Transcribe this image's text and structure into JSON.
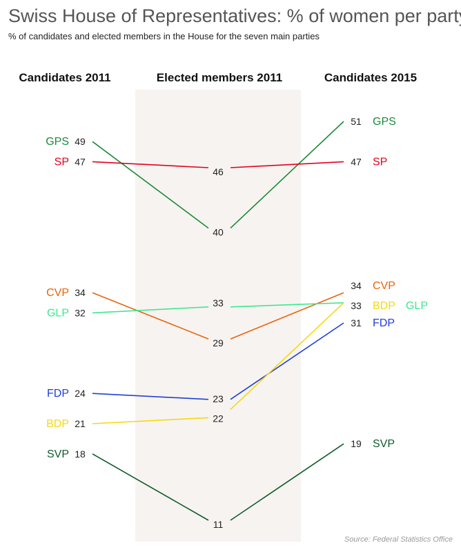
{
  "header": {
    "title": "Swiss House of Representatives: % of women per party",
    "subtitle": "% of candidates and elected members in the House for the seven main parties"
  },
  "source": "Source: Federal Statistics Office",
  "chart_data": {
    "type": "line",
    "subtype": "slope",
    "columns": [
      "Candidates 2011",
      "Elected members 2011",
      "Candidates 2015"
    ],
    "y_range": [
      11,
      51
    ],
    "series": [
      {
        "name": "GPS",
        "color": "#1a8a3a",
        "values": [
          49,
          40,
          51
        ]
      },
      {
        "name": "SP",
        "color": "#e3001b",
        "values": [
          47,
          46,
          47
        ]
      },
      {
        "name": "CVP",
        "color": "#e8640c",
        "values": [
          34,
          29,
          34
        ]
      },
      {
        "name": "GLP",
        "color": "#3de88f",
        "values": [
          32,
          33,
          33
        ]
      },
      {
        "name": "FDP",
        "color": "#1e3fd6",
        "values": [
          24,
          23,
          31
        ]
      },
      {
        "name": "BDP",
        "color": "#f4d90f",
        "values": [
          21,
          22,
          33
        ]
      },
      {
        "name": "SVP",
        "color": "#0e5c2a",
        "values": [
          18,
          11,
          19
        ]
      }
    ]
  }
}
